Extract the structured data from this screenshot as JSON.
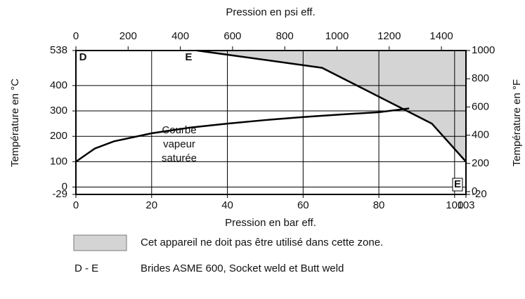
{
  "chart_data": {
    "type": "line",
    "xlabel": "Pression en bar eff.",
    "x2label": "Pression en psi eff.",
    "ylabel": "Température en °C",
    "y2label": "Température en °F",
    "xlim": [
      0,
      103
    ],
    "xticks": [
      0,
      20,
      40,
      60,
      80,
      100,
      103
    ],
    "x2lim": [
      0,
      1494
    ],
    "x2ticks": [
      0,
      200,
      400,
      600,
      800,
      1000,
      1200,
      1400
    ],
    "ylim": [
      -29,
      538
    ],
    "yticks": [
      -29,
      0,
      100,
      200,
      300,
      400,
      538
    ],
    "y2lim": [
      -20,
      1000
    ],
    "y2ticks": [
      -20,
      0,
      200,
      400,
      600,
      800,
      1000
    ],
    "grid": true,
    "series": [
      {
        "name": "Courbe vapeur saturée",
        "color": "#000000",
        "x": [
          0,
          5,
          10,
          20,
          30,
          40,
          50,
          60,
          70,
          80,
          88
        ],
        "values": [
          100,
          152,
          180,
          212,
          234,
          250,
          264,
          276,
          286,
          295,
          310
        ]
      },
      {
        "name": "D - E",
        "color": "#000000",
        "x": [
          32,
          65,
          94,
          103
        ],
        "values": [
          538,
          470,
          250,
          100
        ]
      }
    ],
    "point_labels": [
      "D",
      "E",
      "E"
    ],
    "zone_color": "#d4d4d4",
    "zone_legend": "Cet appareil ne doit pas être utilisé dans cette zone.",
    "line_legend": "Brides ASME 600, Socket weld et Butt weld"
  }
}
